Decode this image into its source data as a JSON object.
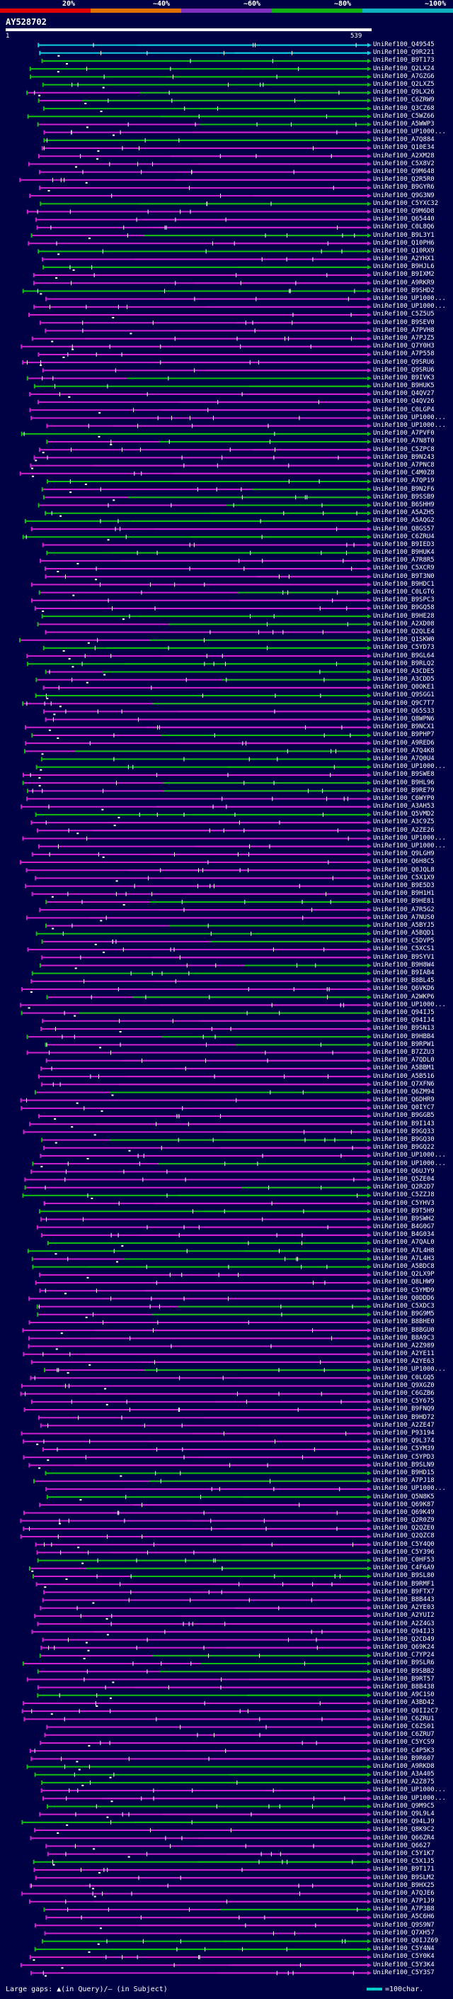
{
  "scale": {
    "labels": [
      "20%",
      "~40%",
      "~60%",
      "~80%",
      "~100%"
    ],
    "colors": [
      "#e00000",
      "#e07000",
      "#8030c0",
      "#10b010",
      "#10b0c0"
    ]
  },
  "query": {
    "name": "AY528702",
    "start": "1",
    "end": "539"
  },
  "colors": {
    "cyan": "#10d0e0",
    "green": "#10c010",
    "magenta": "#d020d0",
    "white": "#ffffff",
    "background": "#000044"
  },
  "hits": [
    "UniRef100_Q49545",
    "UniRef100_Q9R221",
    "UniRef100_B9T173",
    "UniRef100_Q2LX24",
    "UniRef100_A7GZG6",
    "UniRef100_Q2LXZ5",
    "UniRef100_Q9LX26",
    "UniRef100_C6ZRW9",
    "UniRef100_Q3CZ68",
    "UniRef100_C5WZ66",
    "UniRef100_A5WWP3",
    "UniRef100_UP1000...",
    "UniRef100_A7Q884",
    "UniRef100_Q10E34",
    "UniRef100_A2XM28",
    "UniRef100_C5X8V2",
    "UniRef100_Q9M648",
    "UniRef100_Q2R5R0",
    "UniRef100_B9GYR6",
    "UniRef100_Q9G3N9",
    "UniRef100_C5YXC32",
    "UniRef100_Q9M6D8",
    "UniRef100_Q65440",
    "UniRef100_C0L8Q6",
    "UniRef100_B9L3Y1",
    "UniRef100_Q10PH6",
    "UniRef100_Q10RX9",
    "UniRef100_A2YHX1",
    "UniRef100_B9HJL6",
    "UniRef100_B9IXM2",
    "UniRef100_A9RKR9",
    "UniRef100_B9SHD2",
    "UniRef100_UP1000...",
    "UniRef100_UP1000...",
    "UniRef100_C5Z5U5",
    "UniRef100_B9SEV0",
    "UniRef100_A7PVH8",
    "UniRef100_A7PJZ5",
    "UniRef100_Q7Y0H3",
    "UniRef100_A7P558",
    "UniRef100_Q9SRU6",
    "UniRef100_Q9SRU6",
    "UniRef100_B9IVK3",
    "UniRef100_B9HUK5",
    "UniRef100_Q4QV27",
    "UniRef100_Q4QV26",
    "UniRef100_C0LGP4",
    "UniRef100_UP1000...",
    "UniRef100_UP1000...",
    "UniRef100_A7PVF0",
    "UniRef100_A7N8T0",
    "UniRef100_C5ZPC8",
    "UniRef100_B9N243",
    "UniRef100_A7PNC8",
    "UniRef100_C4M0Z8",
    "UniRef100_A7QP19",
    "UniRef100_B9N2F6",
    "UniRef100_B9SSB9",
    "UniRef100_B6SHH9",
    "UniRef100_A5AZH5",
    "UniRef100_A5AQG2",
    "UniRef100_Q8GS57",
    "UniRef100_C6ZRU4",
    "UniRef100_B9IED3",
    "UniRef100_B9HUK4",
    "UniRef100_A7R8R5",
    "UniRef100_C5XCR9",
    "UniRef100_B9T3N0",
    "UniRef100_B9HDC1",
    "UniRef100_C0LGT6",
    "UniRef100_B9SPC3",
    "UniRef100_B9GQ58",
    "UniRef100_B9HE28",
    "UniRef100_A2XD08",
    "UniRef100_Q2QLE4",
    "UniRef100_Q1SKW0",
    "UniRef100_C5YD73",
    "UniRef100_B9GL64",
    "UniRef100_B9RLQ2",
    "UniRef100_A3CDE5",
    "UniRef100_A3CDD5",
    "UniRef100_Q0OKE1",
    "UniRef100_Q9SGG1",
    "UniRef100_Q9C7T7",
    "UniRef100_Q65S33",
    "UniRef100_Q8WPN6",
    "UniRef100_B9NCX1",
    "UniRef100_B9PHP7",
    "UniRef100_A9RED6",
    "UniRef100_A7Q4K8",
    "UniRef100_A7Q0U4",
    "UniRef100_UP1000...",
    "UniRef100_B9SWE8",
    "UniRef100_B9HL96",
    "UniRef100_B9RE79",
    "UniRef100_C6WYP0",
    "UniRef100_A3AH53",
    "UniRef100_Q5VMD2",
    "UniRef100_A3C9Z5",
    "UniRef100_A2ZE26",
    "UniRef100_UP1000...",
    "UniRef100_UP1000...",
    "UniRef100_Q9LGH9",
    "UniRef100_Q6H8C5",
    "UniRef100_Q0JQL8",
    "UniRef100_C5X1X9",
    "UniRef100_B9E5D3",
    "UniRef100_B9H1H1",
    "UniRef100_B9HE81",
    "UniRef100_A7R5G2",
    "UniRef100_A7NUS0",
    "UniRef100_A5BYJ5",
    "UniRef100_A5BQD1",
    "UniRef100_C5DVP5",
    "UniRef100_C5XCS1",
    "UniRef100_B9SYV1",
    "UniRef100_B9H8W4",
    "UniRef100_B9IAB4",
    "UniRef100_B8BL45",
    "UniRef100_Q6VKD6",
    "UniRef100_A2WKP6",
    "UniRef100_UP1000...",
    "UniRef100_Q94IJ5",
    "UniRef100_Q94IJ4",
    "UniRef100_B9SN13",
    "UniRef100_B9HBB4",
    "UniRef100_B9RPW1",
    "UniRef100_B7ZZU3",
    "UniRef100_A7QDL0",
    "UniRef100_A5BBM1",
    "UniRef100_A5B516",
    "UniRef100_Q7XFN6",
    "UniRef100_Q6ZM94",
    "UniRef100_Q6DHR9",
    "UniRef100_Q0IYC7",
    "UniRef100_B9GGB5",
    "UniRef100_B9I143",
    "UniRef100_B9GQ33",
    "UniRef100_B9GQ30",
    "UniRef100_B9GQ22",
    "UniRef100_UP1000...",
    "UniRef100_UP1000...",
    "UniRef100_Q6UJY9",
    "UniRef100_Q5ZE04",
    "UniRef100_Q2R2D7",
    "UniRef100_C5ZZJ8",
    "UniRef100_C5YHV3",
    "UniRef100_B9T5H9",
    "UniRef100_B9SWH2",
    "UniRef100_B4G0G7",
    "UniRef100_B4G034",
    "UniRef100_A7QAL0",
    "UniRef100_A7L4H8",
    "UniRef100_A7L4H3",
    "UniRef100_A5BDC8",
    "UniRef100_Q2LX9P",
    "UniRef100_Q8LHW9",
    "UniRef100_C5YMD9",
    "UniRef100_Q0DDD6",
    "UniRef100_C5XDC3",
    "UniRef100_B9G9M5",
    "UniRef100_B8BHE0",
    "UniRef100_B8BGU0",
    "UniRef100_B8A9C3",
    "UniRef100_A2Z989",
    "UniRef100_A2YE11",
    "UniRef100_A2YE63",
    "UniRef100_UP1000...",
    "UniRef100_C0LGQ5",
    "UniRef100_Q9XGZ0",
    "UniRef100_C6GZB6",
    "UniRef100_C5Y675",
    "UniRef100_B9FNQ9",
    "UniRef100_B9HD72",
    "UniRef100_A2ZE47",
    "UniRef100_P93194",
    "UniRef100_Q9L374",
    "UniRef100_C5YM39",
    "UniRef100_C5YPD3",
    "UniRef100_B9SLN9",
    "UniRef100_B9HD15",
    "UniRef100_A7PJ18",
    "UniRef100_UP1000...",
    "UniRef100_Q5N8K5",
    "UniRef100_Q69K87",
    "UniRef100_Q69K49",
    "UniRef100_Q2R0Z9",
    "UniRef100_Q2QZE0",
    "UniRef100_Q2QZC8",
    "UniRef100_C5Y4Q0",
    "UniRef100_C5Y396",
    "UniRef100_C0HF53",
    "UniRef100_C4F6A9",
    "UniRef100_B9SL80",
    "UniRef100_B9RMF1",
    "UniRef100_B9FTX7",
    "UniRef100_B8B443",
    "UniRef100_A2YE03",
    "UniRef100_A2YUI2",
    "UniRef100_A2Z4G3",
    "UniRef100_Q94IJ3",
    "UniRef100_Q2CD49",
    "UniRef100_Q69K24",
    "UniRef100_C7YP24",
    "UniRef100_B9SLR6",
    "UniRef100_B9SBB2",
    "UniRef100_B9RT57",
    "UniRef100_B8B438",
    "UniRef100_A9C1S0",
    "UniRef100_A3BD42",
    "UniRef100_Q0II2C7",
    "UniRef100_C6ZRU1",
    "UniRef100_C6ZS01",
    "UniRef100_C6ZRU7",
    "UniRef100_C5YCS9",
    "UniRef100_C4P5K3",
    "UniRef100_B9R607",
    "UniRef100_A9RKD8",
    "UniRef100_A3A405",
    "UniRef100_A2Z875",
    "UniRef100_UP1000...",
    "UniRef100_UP1000...",
    "UniRef100_Q9M9C5",
    "UniRef100_Q9L9L4",
    "UniRef100_Q94LJ9",
    "UniRef100_Q8K9C2",
    "UniRef100_Q66ZR4",
    "UniRef100_Q6627",
    "UniRef100_C5Y1K7",
    "UniRef100_C5X1J5",
    "UniRef100_B9T171",
    "UniRef100_B9SLM2",
    "UniRef100_B9HX25",
    "UniRef100_A7QJE6",
    "UniRef100_A7P1J9",
    "UniRef100_A7P3B8",
    "UniRef100_A5C6H6",
    "UniRef100_Q9S9N7",
    "UniRef100_Q7XH57",
    "UniRef100_Q0IJZ69",
    "UniRef100_C5Y4N4",
    "UniRef100_C5Y0K4",
    "UniRef100_C5Y3K4",
    "UniRef100_C5Y3S7"
  ],
  "legend": {
    "left": "Large gaps: ▲(in Query)/— (in Subject)",
    "right": "=100char."
  }
}
